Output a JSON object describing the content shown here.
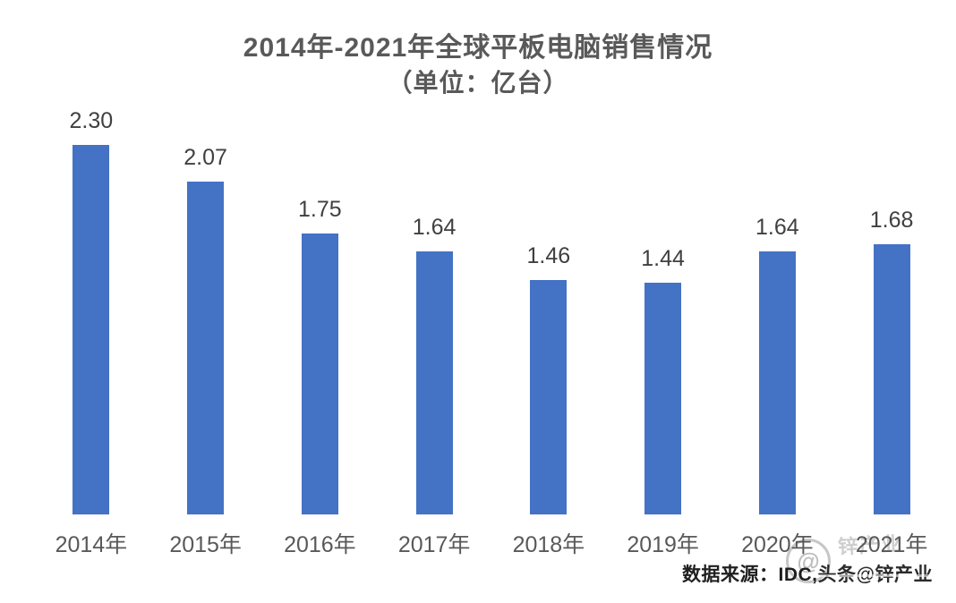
{
  "title": {
    "line1": "2014年-2021年全球平板电脑销售情况",
    "line2": "（单位：亿台）"
  },
  "chart_data": {
    "type": "bar",
    "title": "2014年-2021年全球平板电脑销售情况（单位：亿台）",
    "categories": [
      "2014年",
      "2015年",
      "2016年",
      "2017年",
      "2018年",
      "2019年",
      "2020年",
      "2021年"
    ],
    "values": [
      2.3,
      2.07,
      1.75,
      1.64,
      1.46,
      1.44,
      1.64,
      1.68
    ],
    "data_labels": [
      "2.30",
      "2.07",
      "1.75",
      "1.64",
      "1.46",
      "1.44",
      "1.64",
      "1.68"
    ],
    "xlabel": "",
    "ylabel": "",
    "unit": "亿台",
    "ylim": [
      0,
      2.5
    ],
    "grid": false,
    "legend": false,
    "bar_color": "#4472C4",
    "label_color": "#404040",
    "axis_label_color": "#595959",
    "title_color": "#595959"
  },
  "source": {
    "text": "数据来源：IDC,"
  },
  "watermark": {
    "brand_handle": "头条@锌产业",
    "ghost_text": "锌产业",
    "ghost_symbol": "@"
  }
}
